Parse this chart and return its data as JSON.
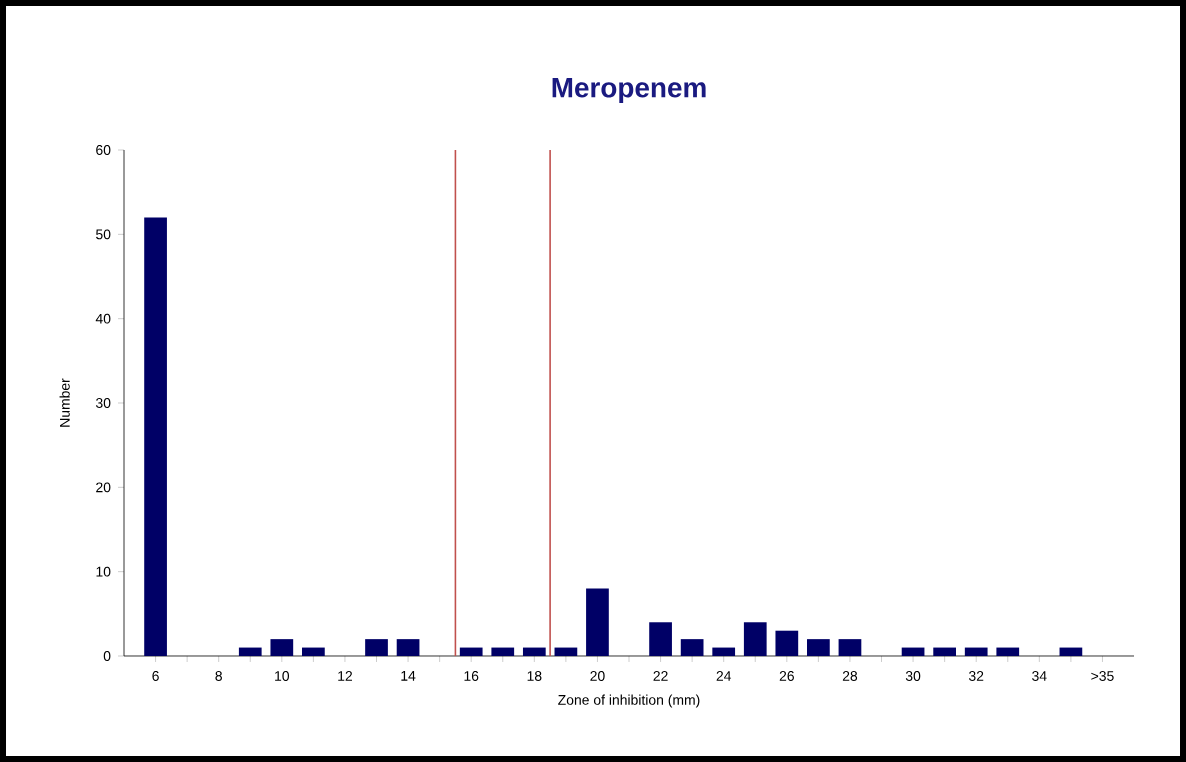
{
  "chart_data": {
    "type": "bar",
    "title": "Meropenem",
    "xlabel": "Zone of inhibition (mm)",
    "ylabel": "Number",
    "x": [
      6,
      7,
      8,
      9,
      10,
      11,
      12,
      13,
      14,
      15,
      16,
      17,
      18,
      19,
      20,
      21,
      22,
      23,
      24,
      25,
      26,
      27,
      28,
      29,
      30,
      31,
      32,
      33,
      34,
      35,
      36
    ],
    "values": [
      52,
      0,
      0,
      1,
      2,
      1,
      0,
      2,
      2,
      0,
      1,
      1,
      1,
      1,
      8,
      0,
      4,
      2,
      1,
      4,
      3,
      2,
      2,
      0,
      1,
      1,
      1,
      1,
      0,
      1,
      0
    ],
    "color": "#000066",
    "xlim": [
      5,
      37
    ],
    "xticks": [
      6,
      {
        "value": 7,
        "label": null
      },
      8,
      {
        "value": 9,
        "label": null
      },
      10,
      {
        "value": 11,
        "label": null
      },
      12,
      {
        "value": 13,
        "label": null
      },
      14,
      {
        "value": 15,
        "label": null
      },
      16,
      {
        "value": 17,
        "label": null
      },
      18,
      {
        "value": 19,
        "label": null
      },
      20,
      {
        "value": 21,
        "label": null
      },
      22,
      {
        "value": 23,
        "label": null
      },
      24,
      {
        "value": 25,
        "label": null
      },
      26,
      {
        "value": 27,
        "label": null
      },
      28,
      {
        "value": 29,
        "label": null
      },
      30,
      {
        "value": 31,
        "label": null
      },
      32,
      {
        "value": 33,
        "label": null
      },
      34,
      {
        "value": 35,
        "label": null
      },
      {
        "value": 36,
        "label": ">35"
      }
    ],
    "ylim": [
      0,
      60
    ],
    "yticks": [
      0,
      10,
      20,
      30,
      40,
      50,
      60
    ],
    "ref_lines": [
      {
        "axis": "x",
        "value": 15.5,
        "color": "#c0504d"
      },
      {
        "axis": "x",
        "value": 18.5,
        "color": "#c0504d"
      }
    ],
    "grid": false
  }
}
